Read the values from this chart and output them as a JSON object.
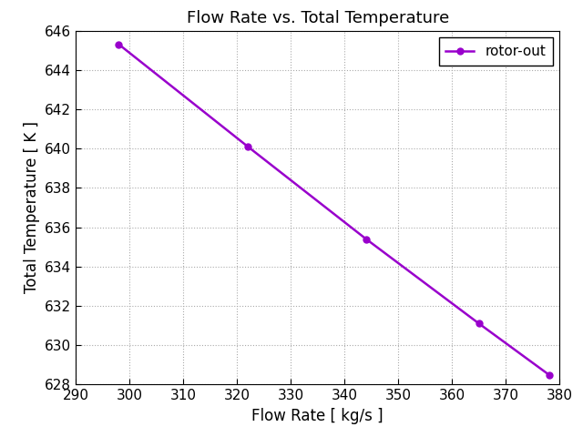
{
  "x": [
    298,
    322,
    344,
    365,
    378
  ],
  "y": [
    645.3,
    640.1,
    635.4,
    631.1,
    628.5
  ],
  "line_color": "#9900cc",
  "marker": "o",
  "marker_size": 5,
  "line_width": 1.8,
  "title": "Flow Rate vs. Total Temperature",
  "xlabel": "Flow Rate [ kg/s ]",
  "ylabel": "Total Temperature [ K ]",
  "xlim": [
    290,
    380
  ],
  "ylim": [
    628,
    646
  ],
  "xticks": [
    290,
    300,
    310,
    320,
    330,
    340,
    350,
    360,
    370,
    380
  ],
  "yticks": [
    628,
    630,
    632,
    634,
    636,
    638,
    640,
    642,
    644,
    646
  ],
  "legend_label": "rotor-out",
  "grid": true,
  "background_color": "#ffffff",
  "title_fontsize": 13,
  "label_fontsize": 12,
  "tick_fontsize": 11,
  "legend_fontsize": 11
}
